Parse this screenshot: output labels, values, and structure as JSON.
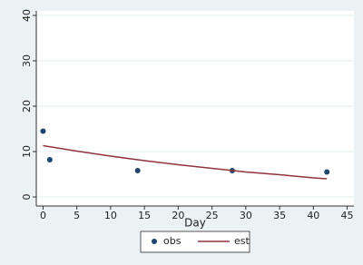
{
  "chart_data": {
    "type": "scatter",
    "xlabel": "Day",
    "xlim": [
      -1,
      46
    ],
    "xticks": [
      0,
      5,
      10,
      15,
      20,
      25,
      30,
      35,
      40,
      45
    ],
    "ylim": [
      -2,
      41
    ],
    "yticks": [
      0,
      10,
      20,
      30,
      40
    ],
    "grid": true,
    "legend": "bottom",
    "series": [
      {
        "name": "obs",
        "type": "scatter",
        "color": "#1a476f",
        "x": [
          0,
          1,
          14,
          28,
          42
        ],
        "values": [
          14.5,
          8.2,
          5.8,
          5.8,
          5.5
        ]
      },
      {
        "name": "est",
        "type": "line",
        "color": "#90353b",
        "x": [
          0,
          5,
          10,
          15,
          20,
          25,
          30,
          35,
          40,
          42
        ],
        "values": [
          11.3,
          10.1,
          9.0,
          8.0,
          7.1,
          6.3,
          5.5,
          4.9,
          4.2,
          4.0
        ]
      }
    ]
  }
}
